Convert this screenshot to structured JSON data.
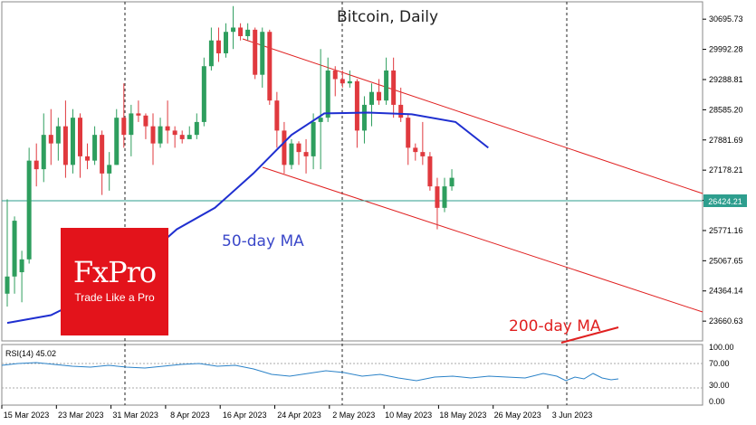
{
  "chart_data": [
    {
      "type": "candlestick",
      "title": "Bitcoin, Daily",
      "last_price": "26424.21",
      "y_ticks": [
        "30695.73",
        "29992.28",
        "29288.81",
        "28585.20",
        "27881.69",
        "27178.21",
        "26474.72",
        "25771.16",
        "25067.65",
        "24364.14",
        "23660.63"
      ],
      "ylim": [
        23200,
        31100
      ],
      "x_ticks": [
        "15 Mar 2023",
        "23 Mar 2023",
        "31 Mar 2023",
        "8 Apr 2023",
        "16 Apr 2023",
        "24 Apr 2023",
        "2 May 2023",
        "10 May 2023",
        "18 May 2023",
        "26 May 2023",
        "3 Jun 2023"
      ],
      "x_tick_index": [
        0,
        6,
        12,
        18,
        24,
        30,
        36,
        42,
        48,
        54,
        60
      ],
      "colors": {
        "up": "#2e9e5e",
        "down": "#e0393e",
        "ma50": "#1f2fd0",
        "channel": "#e02020",
        "ma200": "#e02020",
        "logo_bg": "#e3131b"
      },
      "candles": [
        {
          "date": "14 Mar",
          "o": 24300,
          "h": 26500,
          "l": 24000,
          "c": 24700
        },
        {
          "date": "15 Mar",
          "o": 24700,
          "h": 26100,
          "l": 24300,
          "c": 26000
        },
        {
          "date": "16 Mar",
          "o": 24800,
          "h": 25300,
          "l": 24100,
          "c": 25100
        },
        {
          "date": "17 Mar",
          "o": 25100,
          "h": 27700,
          "l": 25000,
          "c": 27400
        },
        {
          "date": "18 Mar",
          "o": 27400,
          "h": 27800,
          "l": 26800,
          "c": 27200
        },
        {
          "date": "19 Mar",
          "o": 27200,
          "h": 28500,
          "l": 26900,
          "c": 28000
        },
        {
          "date": "20 Mar",
          "o": 28000,
          "h": 28600,
          "l": 27300,
          "c": 27800
        },
        {
          "date": "21 Mar",
          "o": 27800,
          "h": 28400,
          "l": 27400,
          "c": 28200
        },
        {
          "date": "22 Mar",
          "o": 28200,
          "h": 28800,
          "l": 27000,
          "c": 27300
        },
        {
          "date": "23 Mar",
          "o": 27300,
          "h": 28600,
          "l": 27100,
          "c": 28400
        },
        {
          "date": "24 Mar",
          "o": 28400,
          "h": 28500,
          "l": 27000,
          "c": 27500
        },
        {
          "date": "25 Mar",
          "o": 27500,
          "h": 27800,
          "l": 27200,
          "c": 27400
        },
        {
          "date": "26 Mar",
          "o": 27400,
          "h": 28200,
          "l": 27300,
          "c": 28000
        },
        {
          "date": "27 Mar",
          "o": 28000,
          "h": 28100,
          "l": 26600,
          "c": 27100
        },
        {
          "date": "28 Mar",
          "o": 27100,
          "h": 27600,
          "l": 26700,
          "c": 27300
        },
        {
          "date": "29 Mar",
          "o": 27300,
          "h": 28600,
          "l": 27300,
          "c": 28400
        },
        {
          "date": "30 Mar",
          "o": 28400,
          "h": 29200,
          "l": 27700,
          "c": 28000
        },
        {
          "date": "31 Mar",
          "o": 28000,
          "h": 28700,
          "l": 27500,
          "c": 28500
        },
        {
          "date": "1 Apr",
          "o": 28500,
          "h": 28800,
          "l": 28300,
          "c": 28450
        },
        {
          "date": "2 Apr",
          "o": 28450,
          "h": 28500,
          "l": 27900,
          "c": 28200
        },
        {
          "date": "3 Apr",
          "o": 28200,
          "h": 28500,
          "l": 27300,
          "c": 27800
        },
        {
          "date": "4 Apr",
          "o": 27800,
          "h": 28400,
          "l": 27700,
          "c": 28200
        },
        {
          "date": "5 Apr",
          "o": 28200,
          "h": 28800,
          "l": 27800,
          "c": 28100
        },
        {
          "date": "6 Apr",
          "o": 28100,
          "h": 28200,
          "l": 27700,
          "c": 28000
        },
        {
          "date": "7 Apr",
          "o": 28000,
          "h": 28100,
          "l": 27800,
          "c": 27900
        },
        {
          "date": "8 Apr",
          "o": 27900,
          "h": 28200,
          "l": 27900,
          "c": 28000
        },
        {
          "date": "9 Apr",
          "o": 28000,
          "h": 28500,
          "l": 27900,
          "c": 28300
        },
        {
          "date": "10 Apr",
          "o": 28300,
          "h": 29800,
          "l": 28200,
          "c": 29600
        },
        {
          "date": "11 Apr",
          "o": 29600,
          "h": 30500,
          "l": 29500,
          "c": 30200
        },
        {
          "date": "12 Apr",
          "o": 30200,
          "h": 30500,
          "l": 29700,
          "c": 29900
        },
        {
          "date": "13 Apr",
          "o": 29900,
          "h": 30600,
          "l": 29800,
          "c": 30400
        },
        {
          "date": "14 Apr",
          "o": 30400,
          "h": 31000,
          "l": 30000,
          "c": 30500
        },
        {
          "date": "15 Apr",
          "o": 30500,
          "h": 30600,
          "l": 30200,
          "c": 30300
        },
        {
          "date": "16 Apr",
          "o": 30300,
          "h": 30600,
          "l": 30200,
          "c": 30450
        },
        {
          "date": "17 Apr",
          "o": 30450,
          "h": 30500,
          "l": 29300,
          "c": 29400
        },
        {
          "date": "18 Apr",
          "o": 29400,
          "h": 30500,
          "l": 29100,
          "c": 30400
        },
        {
          "date": "19 Apr",
          "o": 30400,
          "h": 30450,
          "l": 28700,
          "c": 28800
        },
        {
          "date": "20 Apr",
          "o": 28800,
          "h": 29000,
          "l": 27700,
          "c": 28100
        },
        {
          "date": "21 Apr",
          "o": 28100,
          "h": 28300,
          "l": 27100,
          "c": 27300
        },
        {
          "date": "22 Apr",
          "o": 27300,
          "h": 27900,
          "l": 27200,
          "c": 27800
        },
        {
          "date": "23 Apr",
          "o": 27800,
          "h": 27850,
          "l": 27300,
          "c": 27600
        },
        {
          "date": "24 Apr",
          "o": 27600,
          "h": 27900,
          "l": 27100,
          "c": 27500
        },
        {
          "date": "25 Apr",
          "o": 27500,
          "h": 28500,
          "l": 27200,
          "c": 28300
        },
        {
          "date": "26 Apr",
          "o": 28300,
          "h": 30000,
          "l": 27200,
          "c": 28400
        },
        {
          "date": "27 Apr",
          "o": 28400,
          "h": 29800,
          "l": 28300,
          "c": 29500
        },
        {
          "date": "28 Apr",
          "o": 29500,
          "h": 29600,
          "l": 28900,
          "c": 29300
        },
        {
          "date": "29 Apr",
          "o": 29300,
          "h": 29500,
          "l": 29100,
          "c": 29200
        },
        {
          "date": "30 Apr",
          "o": 29200,
          "h": 29500,
          "l": 29100,
          "c": 29250
        },
        {
          "date": "1 May",
          "o": 29250,
          "h": 29300,
          "l": 27700,
          "c": 28100
        },
        {
          "date": "2 May",
          "o": 28100,
          "h": 28900,
          "l": 27800,
          "c": 28700
        },
        {
          "date": "3 May",
          "o": 28700,
          "h": 29200,
          "l": 28200,
          "c": 29000
        },
        {
          "date": "4 May",
          "o": 29000,
          "h": 29300,
          "l": 28700,
          "c": 28800
        },
        {
          "date": "5 May",
          "o": 28800,
          "h": 29800,
          "l": 28700,
          "c": 29500
        },
        {
          "date": "6 May",
          "o": 29500,
          "h": 29800,
          "l": 28400,
          "c": 28700
        },
        {
          "date": "7 May",
          "o": 28700,
          "h": 29100,
          "l": 28300,
          "c": 28400
        },
        {
          "date": "8 May",
          "o": 28400,
          "h": 28500,
          "l": 27300,
          "c": 27700
        },
        {
          "date": "9 May",
          "o": 27700,
          "h": 27800,
          "l": 27400,
          "c": 27600
        },
        {
          "date": "10 May",
          "o": 27600,
          "h": 28300,
          "l": 27300,
          "c": 27500
        },
        {
          "date": "11 May",
          "o": 27500,
          "h": 27600,
          "l": 26700,
          "c": 26800
        },
        {
          "date": "12 May",
          "o": 26800,
          "h": 27000,
          "l": 25800,
          "c": 26300
        },
        {
          "date": "13 May",
          "o": 26300,
          "h": 27000,
          "l": 26200,
          "c": 26800
        },
        {
          "date": "14 May",
          "o": 26800,
          "h": 27200,
          "l": 26700,
          "c": 27000
        }
      ],
      "ma50": [
        [
          0,
          23620
        ],
        [
          8,
          23800
        ],
        [
          16,
          24300
        ],
        [
          23,
          24900
        ],
        [
          31,
          25800
        ],
        [
          38,
          26300
        ],
        [
          45,
          27100
        ],
        [
          52,
          28000
        ],
        [
          58,
          28500
        ],
        [
          66,
          28520
        ],
        [
          74,
          28480
        ],
        [
          82,
          28300
        ],
        [
          88,
          27700
        ]
      ]
    },
    {
      "type": "line",
      "panel": "RSI",
      "label": "RSI(14) 45.02",
      "y_ticks": [
        "100.00",
        "70.00",
        "30.00",
        "0.00"
      ],
      "ylim": [
        0,
        100
      ]
    }
  ],
  "annotations": {
    "ma50": "50-day MA",
    "ma200": "200-day MA"
  },
  "logo": {
    "name": "FxPro",
    "tagline": "Trade Like a Pro"
  }
}
